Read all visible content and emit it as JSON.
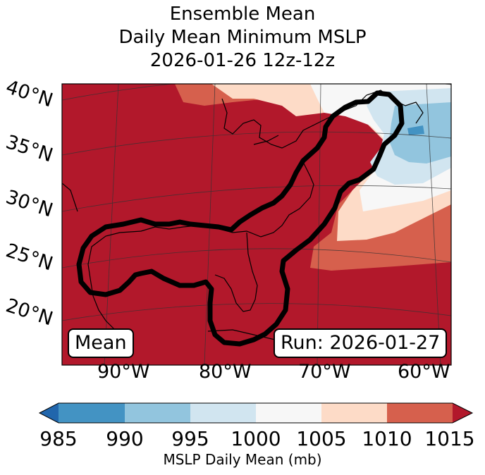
{
  "title": {
    "line1": "Ensemble Mean",
    "line2": "Daily Mean Minimum MSLP",
    "line3": "2026-01-26 12z-12z"
  },
  "map": {
    "lat_labels": [
      "40°N",
      "35°N",
      "30°N",
      "25°N",
      "20°N"
    ],
    "lon_labels": [
      "90°W",
      "80°W",
      "70°W",
      "60°W"
    ],
    "left_box": "Mean",
    "right_box": "Run: 2026-01-27"
  },
  "colorbar": {
    "ticks": [
      "985",
      "990",
      "995",
      "1000",
      "1005",
      "1010",
      "1015"
    ],
    "label": "MSLP Daily Mean (mb)",
    "colors": [
      "#2166ac",
      "#4393c3",
      "#92c5de",
      "#d1e5f0",
      "#f7f7f7",
      "#fddbc7",
      "#d6604d",
      "#b2182b"
    ]
  },
  "chart_data": {
    "type": "heatmap",
    "title": "Ensemble Mean Daily Mean Minimum MSLP 2026-01-26 12z-12z",
    "variable": "MSLP Daily Mean",
    "units": "mb",
    "levels": [
      985,
      990,
      995,
      1000,
      1005,
      1010,
      1015
    ],
    "extend": "both",
    "lat_ticks": [
      40,
      35,
      30,
      25,
      20
    ],
    "lon_ticks": [
      -90,
      -80,
      -70,
      -60
    ]
  }
}
